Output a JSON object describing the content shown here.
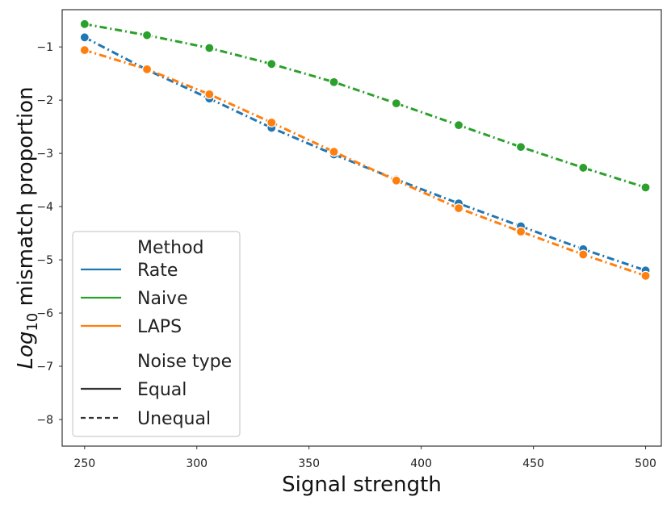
{
  "chart_data": {
    "type": "line",
    "title": "",
    "xlabel": "Signal strength",
    "ylabel_main": "Log",
    "ylabel_sub": "10",
    "ylabel_rest": " mismatch proportion",
    "xlim": [
      240,
      507
    ],
    "ylim": [
      -8.5,
      -0.3
    ],
    "xticks": [
      250,
      300,
      350,
      400,
      450,
      500
    ],
    "yticks": [
      -1,
      -2,
      -3,
      -4,
      -5,
      -6,
      -7,
      -8
    ],
    "x": [
      250,
      277.8,
      305.6,
      333.3,
      361.1,
      388.9,
      416.7,
      444.4,
      472.2,
      500
    ],
    "series": [
      {
        "name": "Rate",
        "noise": "Unequal",
        "color": "#1f77b4",
        "values": [
          -0.82,
          -1.43,
          -1.97,
          -2.52,
          -3.02,
          -3.49,
          -3.94,
          -4.37,
          -4.8,
          -5.2
        ]
      },
      {
        "name": "Naive",
        "noise": "Unequal",
        "color": "#2ca02c",
        "values": [
          -0.57,
          -0.78,
          -1.02,
          -1.32,
          -1.66,
          -2.06,
          -2.47,
          -2.88,
          -3.27,
          -3.64
        ]
      },
      {
        "name": "LAPS",
        "noise": "Unequal",
        "color": "#ff7f0e",
        "values": [
          -1.06,
          -1.42,
          -1.89,
          -2.42,
          -2.97,
          -3.51,
          -4.03,
          -4.47,
          -4.9,
          -5.3
        ]
      }
    ],
    "legend": {
      "placement": "bottom-left",
      "method_title": "Method",
      "method_items": [
        {
          "label": "Rate",
          "color": "#1f77b4"
        },
        {
          "label": "Naive",
          "color": "#2ca02c"
        },
        {
          "label": "LAPS",
          "color": "#ff7f0e"
        }
      ],
      "noise_title": "Noise type",
      "noise_items": [
        {
          "label": "Equal",
          "style": "solid"
        },
        {
          "label": "Unequal",
          "style": "dashed"
        }
      ]
    }
  }
}
